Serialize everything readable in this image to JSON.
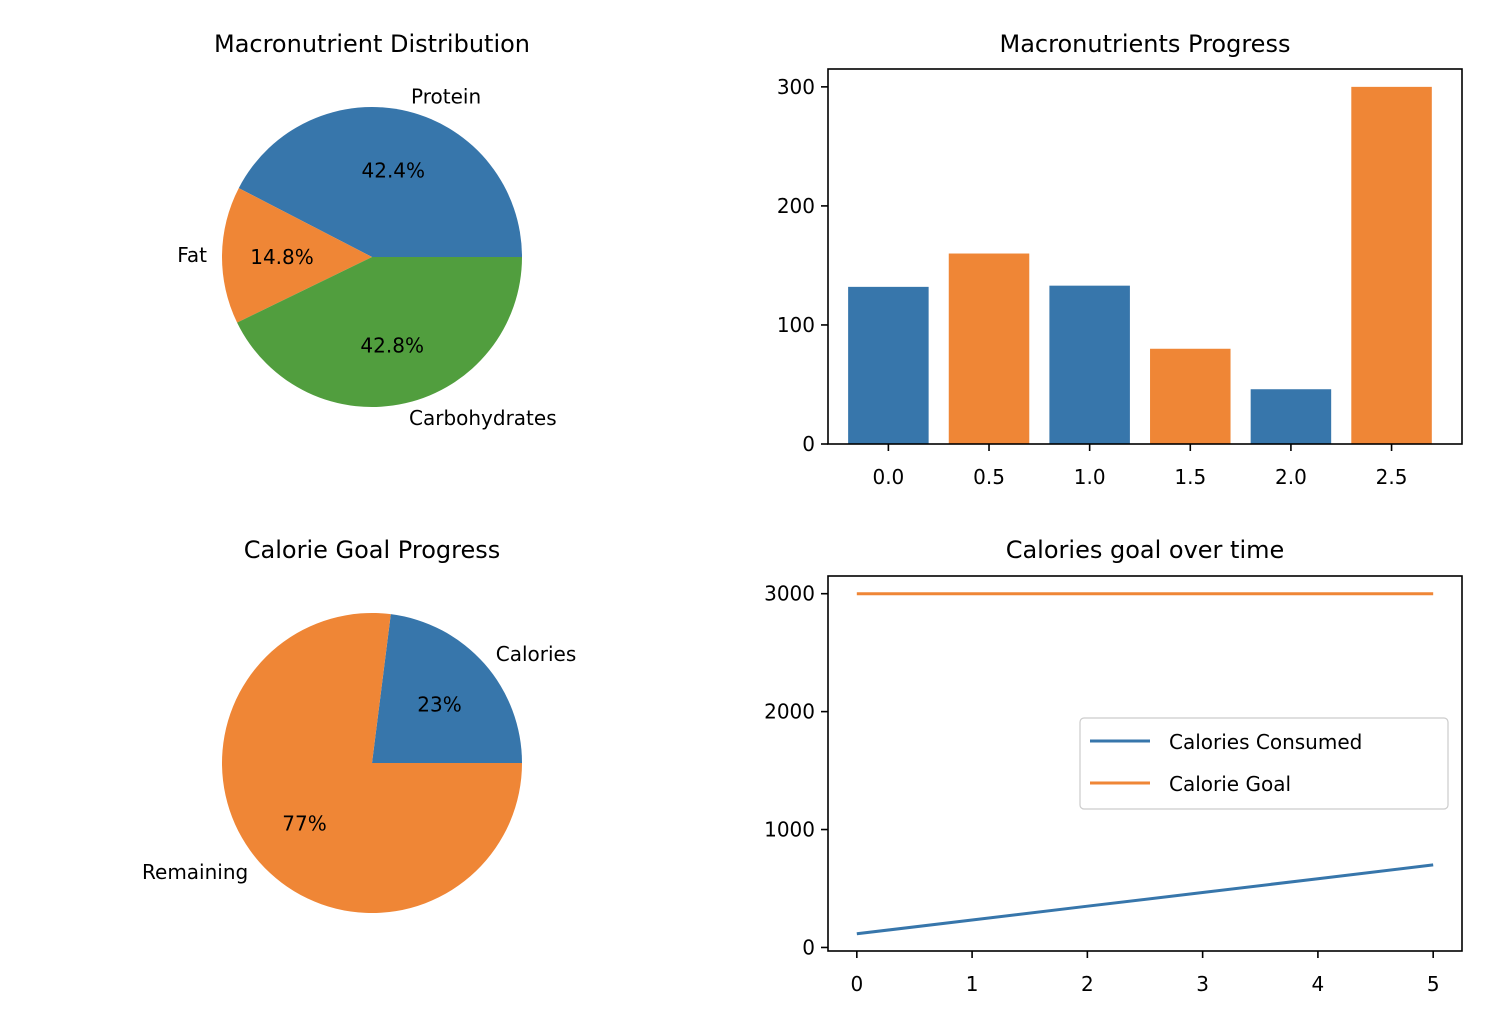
{
  "colors": {
    "blue": "#3776ab",
    "orange": "#ef8636",
    "green": "#519e3e"
  },
  "chart_data": [
    {
      "type": "pie",
      "title": "Macronutrient Distribution",
      "slices": [
        {
          "label": "Protein",
          "value": 42.4,
          "pct_label": "42.4%",
          "color": "#3776ab"
        },
        {
          "label": "Fat",
          "value": 14.8,
          "pct_label": "14.8%",
          "color": "#ef8636"
        },
        {
          "label": "Carbohydrates",
          "value": 42.8,
          "pct_label": "42.8%",
          "color": "#519e3e"
        }
      ]
    },
    {
      "type": "bar",
      "title": "Macronutrients Progress",
      "x": [
        0.0,
        0.5,
        1.0,
        1.5,
        2.0,
        2.5
      ],
      "values": [
        132,
        160,
        133,
        80,
        46,
        300
      ],
      "bar_colors": [
        "#3776ab",
        "#ef8636",
        "#3776ab",
        "#ef8636",
        "#3776ab",
        "#ef8636"
      ],
      "xticks": [
        "0.0",
        "0.5",
        "1.0",
        "1.5",
        "2.0",
        "2.5"
      ],
      "yticks": [
        "0",
        "100",
        "200",
        "300"
      ],
      "xlim": [
        -0.3,
        2.85
      ],
      "ylim": [
        0,
        315
      ]
    },
    {
      "type": "pie",
      "title": "Calorie Goal Progress",
      "slices": [
        {
          "label": "Calories",
          "value": 23,
          "pct_label": "23%",
          "color": "#3776ab"
        },
        {
          "label": "Remaining",
          "value": 77,
          "pct_label": "77%",
          "color": "#ef8636"
        }
      ]
    },
    {
      "type": "line",
      "title": "Calories goal over time",
      "x": [
        0,
        1,
        2,
        3,
        4,
        5
      ],
      "series": [
        {
          "name": "Calories Consumed",
          "values": [
            116,
            233,
            350,
            466,
            583,
            700
          ],
          "color": "#3776ab"
        },
        {
          "name": "Calorie Goal",
          "values": [
            3000,
            3000,
            3000,
            3000,
            3000,
            3000
          ],
          "color": "#ef8636"
        }
      ],
      "xticks": [
        "0",
        "1",
        "2",
        "3",
        "4",
        "5"
      ],
      "yticks": [
        "0",
        "1000",
        "2000",
        "3000"
      ],
      "xlim": [
        -0.25,
        5.25
      ],
      "ylim": [
        -30,
        3150
      ],
      "legend": "center-right"
    }
  ]
}
